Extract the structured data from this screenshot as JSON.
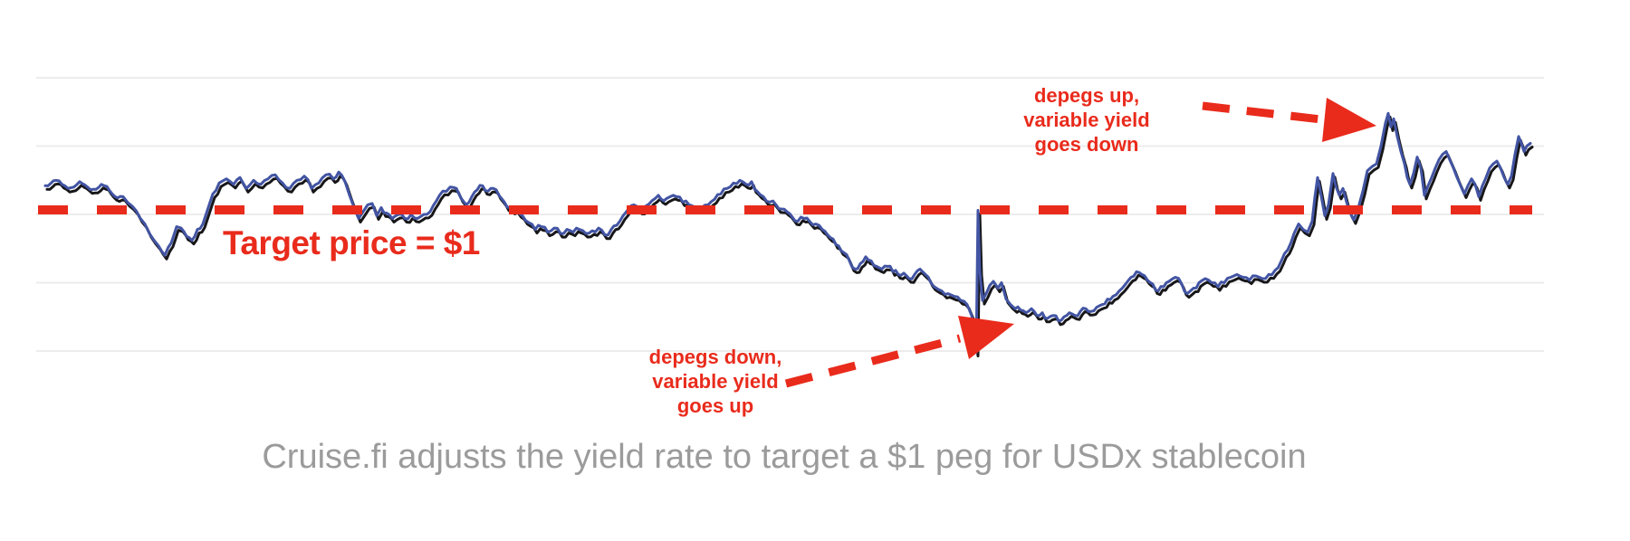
{
  "colors": {
    "accent_red": "#e92b1c",
    "line_blue": "#4254a3",
    "line_black": "#17171a",
    "gridline_gray": "#ececec",
    "caption_gray": "#9b9b9b",
    "background": "#ffffff"
  },
  "annotations": {
    "target_label": "Target price = $1",
    "depeg_down": {
      "lines": [
        "depegs down,",
        "variable yield",
        "goes up"
      ]
    },
    "depeg_up": {
      "lines": [
        "depegs up,",
        "variable yield",
        "goes down"
      ]
    }
  },
  "caption": {
    "text": "Cruise.fi adjusts the yield rate to target a $1 peg for USDx stablecoin"
  },
  "chart_data": {
    "type": "line",
    "title": "",
    "xlabel": "",
    "ylabel": "",
    "x_axis": {
      "visible": false,
      "meaning": "time (unlabeled)"
    },
    "y_axis": {
      "visible": false,
      "meaning": "USDx price (unlabeled)",
      "gridline_prices": [
        1.1,
        1.05,
        1.0,
        0.95,
        0.9
      ]
    },
    "grid": true,
    "legend": false,
    "target_line": {
      "price": 1.0,
      "style": "thick dashed",
      "label": "Target price = $1"
    },
    "series": [
      {
        "name": "USDx price",
        "note": "single series rendered twice: black drop-shadow stroke under a blue stroke",
        "points": [
          [
            50,
            1.021
          ],
          [
            62,
            1.025
          ],
          [
            75,
            1.019
          ],
          [
            88,
            1.024
          ],
          [
            100,
            1.018
          ],
          [
            112,
            1.022
          ],
          [
            124,
            1.015
          ],
          [
            136,
            1.013
          ],
          [
            146,
            1.006
          ],
          [
            155,
            0.997
          ],
          [
            165,
            0.986
          ],
          [
            175,
            0.977
          ],
          [
            182,
            0.97
          ],
          [
            189,
            0.979
          ],
          [
            195,
            0.991
          ],
          [
            200,
            0.99
          ],
          [
            206,
            0.984
          ],
          [
            212,
            0.981
          ],
          [
            218,
            0.989
          ],
          [
            224,
            0.993
          ],
          [
            229,
            1.003
          ],
          [
            235,
            1.015
          ],
          [
            242,
            1.023
          ],
          [
            250,
            1.026
          ],
          [
            258,
            1.022
          ],
          [
            265,
            1.027
          ],
          [
            272,
            1.019
          ],
          [
            280,
            1.025
          ],
          [
            288,
            1.022
          ],
          [
            296,
            1.026
          ],
          [
            304,
            1.029
          ],
          [
            312,
            1.023
          ],
          [
            320,
            1.019
          ],
          [
            328,
            1.025
          ],
          [
            336,
            1.028
          ],
          [
            344,
            1.019
          ],
          [
            352,
            1.023
          ],
          [
            360,
            1.029
          ],
          [
            368,
            1.026
          ],
          [
            374,
            1.031
          ],
          [
            381,
            1.024
          ],
          [
            386,
            1.014
          ],
          [
            391,
            1.005
          ],
          [
            396,
            0.997
          ],
          [
            401,
            1.002
          ],
          [
            406,
            1.007
          ],
          [
            411,
            1.008
          ],
          [
            416,
            0.999
          ],
          [
            421,
            1.005
          ],
          [
            427,
            1.001
          ],
          [
            433,
            0.997
          ],
          [
            440,
            1.0
          ],
          [
            447,
            0.997
          ],
          [
            454,
            1.0
          ],
          [
            461,
            0.997
          ],
          [
            468,
            1.0
          ],
          [
            475,
            1.002
          ],
          [
            482,
            1.01
          ],
          [
            489,
            1.017
          ],
          [
            497,
            1.02
          ],
          [
            504,
            1.019
          ],
          [
            509,
            1.012
          ],
          [
            515,
            1.007
          ],
          [
            521,
            1.013
          ],
          [
            527,
            1.018
          ],
          [
            533,
            1.021
          ],
          [
            539,
            1.017
          ],
          [
            545,
            1.019
          ],
          [
            551,
            1.014
          ],
          [
            557,
            1.009
          ],
          [
            563,
            1.005
          ],
          [
            570,
            1.004
          ],
          [
            577,
            0.999
          ],
          [
            584,
            0.994
          ],
          [
            591,
            0.989
          ],
          [
            598,
            0.991
          ],
          [
            605,
            0.987
          ],
          [
            612,
            0.99
          ],
          [
            619,
            0.986
          ],
          [
            626,
            0.989
          ],
          [
            633,
            0.987
          ],
          [
            640,
            0.989
          ],
          [
            647,
            0.986
          ],
          [
            654,
            0.988
          ],
          [
            661,
            0.99
          ],
          [
            668,
            0.985
          ],
          [
            675,
            0.989
          ],
          [
            681,
            0.992
          ],
          [
            688,
            0.999
          ],
          [
            694,
            1.004
          ],
          [
            700,
            1.007
          ],
          [
            707,
            1.003
          ],
          [
            713,
            1.006
          ],
          [
            720,
            1.01
          ],
          [
            727,
            1.014
          ],
          [
            733,
            1.01
          ],
          [
            740,
            1.013
          ],
          [
            747,
            1.013
          ],
          [
            754,
            1.009
          ],
          [
            761,
            1.007
          ],
          [
            768,
            1.005
          ],
          [
            775,
            1.005
          ],
          [
            782,
            1.007
          ],
          [
            789,
            1.011
          ],
          [
            796,
            1.015
          ],
          [
            803,
            1.019
          ],
          [
            810,
            1.023
          ],
          [
            817,
            1.025
          ],
          [
            824,
            1.022
          ],
          [
            830,
            1.024
          ],
          [
            836,
            1.017
          ],
          [
            843,
            1.013
          ],
          [
            850,
            1.009
          ],
          [
            857,
            1.007
          ],
          [
            863,
            1.004
          ],
          [
            869,
            1.002
          ],
          [
            875,
            0.998
          ],
          [
            881,
            0.995
          ],
          [
            888,
            0.997
          ],
          [
            894,
            0.995
          ],
          [
            901,
            0.993
          ],
          [
            908,
            0.989
          ],
          [
            914,
            0.985
          ],
          [
            920,
            0.982
          ],
          [
            926,
            0.977
          ],
          [
            932,
            0.972
          ],
          [
            938,
            0.966
          ],
          [
            944,
            0.96
          ],
          [
            950,
            0.964
          ],
          [
            956,
            0.969
          ],
          [
            962,
            0.966
          ],
          [
            968,
            0.962
          ],
          [
            974,
            0.96
          ],
          [
            980,
            0.962
          ],
          [
            986,
            0.958
          ],
          [
            992,
            0.956
          ],
          [
            998,
            0.957
          ],
          [
            1004,
            0.953
          ],
          [
            1010,
            0.956
          ],
          [
            1016,
            0.96
          ],
          [
            1022,
            0.956
          ],
          [
            1028,
            0.95
          ],
          [
            1034,
            0.946
          ],
          [
            1040,
            0.944
          ],
          [
            1047,
            0.942
          ],
          [
            1054,
            0.94
          ],
          [
            1061,
            0.937
          ],
          [
            1068,
            0.934
          ],
          [
            1073,
            0.926
          ],
          [
            1076,
            0.913
          ],
          [
            1078,
            0.899
          ],
          [
            1080,
            1.003
          ],
          [
            1082,
            0.958
          ],
          [
            1085,
            0.937
          ],
          [
            1089,
            0.942
          ],
          [
            1093,
            0.948
          ],
          [
            1097,
            0.951
          ],
          [
            1102,
            0.946
          ],
          [
            1106,
            0.95
          ],
          [
            1111,
            0.938
          ],
          [
            1116,
            0.934
          ],
          [
            1121,
            0.931
          ],
          [
            1127,
            0.93
          ],
          [
            1133,
            0.928
          ],
          [
            1139,
            0.931
          ],
          [
            1145,
            0.926
          ],
          [
            1151,
            0.928
          ],
          [
            1157,
            0.924
          ],
          [
            1163,
            0.926
          ],
          [
            1169,
            0.922
          ],
          [
            1175,
            0.925
          ],
          [
            1181,
            0.928
          ],
          [
            1187,
            0.926
          ],
          [
            1193,
            0.929
          ],
          [
            1199,
            0.931
          ],
          [
            1205,
            0.929
          ],
          [
            1211,
            0.932
          ],
          [
            1217,
            0.934
          ],
          [
            1223,
            0.938
          ],
          [
            1229,
            0.94
          ],
          [
            1236,
            0.944
          ],
          [
            1243,
            0.949
          ],
          [
            1249,
            0.954
          ],
          [
            1255,
            0.958
          ],
          [
            1261,
            0.956
          ],
          [
            1267,
            0.952
          ],
          [
            1273,
            0.949
          ],
          [
            1279,
            0.944
          ],
          [
            1285,
            0.947
          ],
          [
            1291,
            0.951
          ],
          [
            1298,
            0.954
          ],
          [
            1305,
            0.949
          ],
          [
            1311,
            0.942
          ],
          [
            1318,
            0.946
          ],
          [
            1324,
            0.95
          ],
          [
            1331,
            0.953
          ],
          [
            1338,
            0.95
          ],
          [
            1345,
            0.947
          ],
          [
            1352,
            0.95
          ],
          [
            1359,
            0.954
          ],
          [
            1366,
            0.956
          ],
          [
            1373,
            0.954
          ],
          [
            1380,
            0.952
          ],
          [
            1387,
            0.955
          ],
          [
            1394,
            0.953
          ],
          [
            1401,
            0.956
          ],
          [
            1408,
            0.959
          ],
          [
            1415,
            0.966
          ],
          [
            1422,
            0.974
          ],
          [
            1429,
            0.986
          ],
          [
            1434,
            0.993
          ],
          [
            1439,
            0.989
          ],
          [
            1444,
            0.987
          ],
          [
            1449,
            0.995
          ],
          [
            1455,
            1.027
          ],
          [
            1458,
            1.017
          ],
          [
            1463,
            0.999
          ],
          [
            1467,
            1.007
          ],
          [
            1472,
            1.03
          ],
          [
            1475,
            1.021
          ],
          [
            1479,
            1.014
          ],
          [
            1483,
            1.019
          ],
          [
            1487,
            1.009
          ],
          [
            1491,
            1.001
          ],
          [
            1495,
            0.996
          ],
          [
            1500,
            1.005
          ],
          [
            1505,
            1.017
          ],
          [
            1510,
            1.032
          ],
          [
            1515,
            1.035
          ],
          [
            1520,
            1.037
          ],
          [
            1525,
            1.05
          ],
          [
            1530,
            1.067
          ],
          [
            1533,
            1.074
          ],
          [
            1536,
            1.064
          ],
          [
            1539,
            1.07
          ],
          [
            1543,
            1.057
          ],
          [
            1547,
            1.046
          ],
          [
            1551,
            1.037
          ],
          [
            1554,
            1.027
          ],
          [
            1557,
            1.022
          ],
          [
            1561,
            1.03
          ],
          [
            1565,
            1.042
          ],
          [
            1569,
            1.034
          ],
          [
            1573,
            1.014
          ],
          [
            1577,
            1.021
          ],
          [
            1581,
            1.027
          ],
          [
            1585,
            1.034
          ],
          [
            1589,
            1.04
          ],
          [
            1593,
            1.044
          ],
          [
            1597,
            1.046
          ],
          [
            1601,
            1.04
          ],
          [
            1605,
            1.034
          ],
          [
            1609,
            1.027
          ],
          [
            1613,
            1.021
          ],
          [
            1617,
            1.015
          ],
          [
            1621,
            1.021
          ],
          [
            1625,
            1.026
          ],
          [
            1629,
            1.022
          ],
          [
            1633,
            1.013
          ],
          [
            1637,
            1.021
          ],
          [
            1641,
            1.027
          ],
          [
            1645,
            1.034
          ],
          [
            1649,
            1.037
          ],
          [
            1653,
            1.039
          ],
          [
            1657,
            1.034
          ],
          [
            1661,
            1.027
          ],
          [
            1665,
            1.022
          ],
          [
            1669,
            1.028
          ],
          [
            1673,
            1.044
          ],
          [
            1677,
            1.057
          ],
          [
            1680,
            1.052
          ],
          [
            1683,
            1.046
          ],
          [
            1686,
            1.05
          ],
          [
            1690,
            1.052
          ]
        ]
      }
    ]
  }
}
